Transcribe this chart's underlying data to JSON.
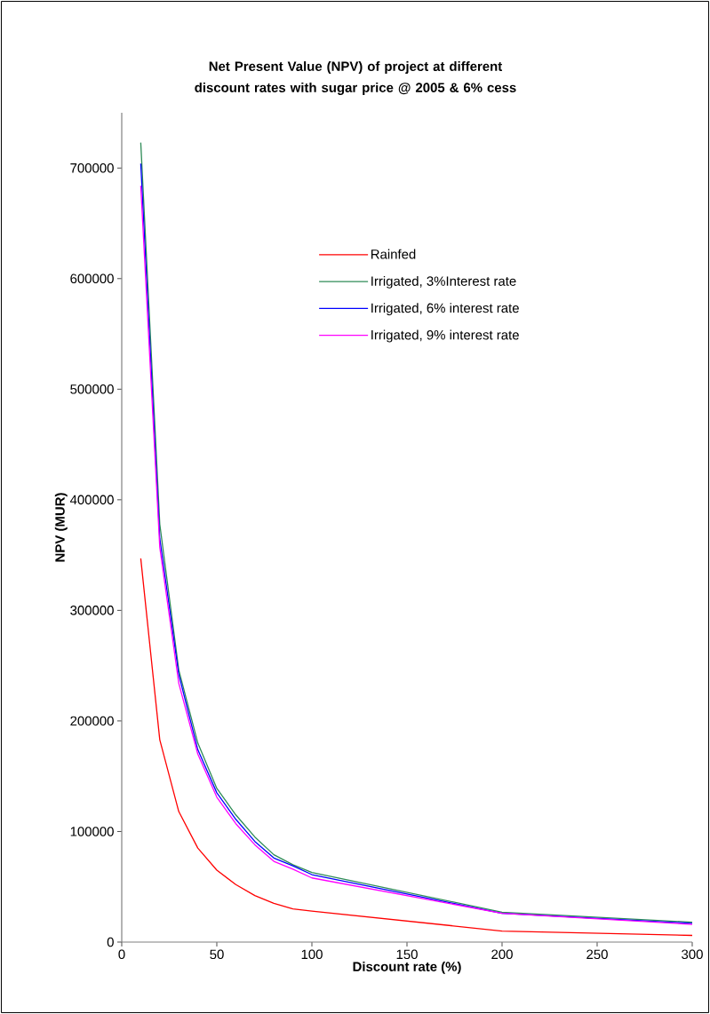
{
  "chart_data": {
    "type": "line",
    "title": "Net Present Value (NPV) of project at different discount rates with sugar price @ 2005 & 6% cess",
    "xlabel": "Discount rate (%)",
    "ylabel": "NPV (MUR)",
    "x": [
      10,
      20,
      30,
      40,
      50,
      60,
      70,
      80,
      90,
      100,
      200,
      300
    ],
    "series": [
      {
        "name": "Rainfed",
        "color": "#ff0000",
        "values": [
          347000,
          183000,
          118000,
          85000,
          65000,
          52000,
          42000,
          35000,
          30000,
          28000,
          10000,
          6000
        ]
      },
      {
        "name": "Irrigated, 3%Interest rate",
        "color": "#2e8b57",
        "values": [
          723000,
          378000,
          246000,
          180000,
          139000,
          115000,
          95000,
          79000,
          70000,
          63000,
          27000,
          18000
        ]
      },
      {
        "name": "Irrigated, 6% interest rate",
        "color": "#0000ff",
        "values": [
          704000,
          365000,
          242000,
          174000,
          135000,
          111000,
          91000,
          76000,
          69000,
          61000,
          26000,
          17000
        ]
      },
      {
        "name": "Irrigated, 9% interest rate",
        "color": "#ff00ff",
        "values": [
          684000,
          357000,
          234000,
          170000,
          131000,
          107000,
          88000,
          73000,
          66000,
          58000,
          26000,
          16000
        ]
      }
    ],
    "xlim": [
      0,
      300
    ],
    "xticks": [
      0,
      50,
      100,
      150,
      200,
      250,
      300
    ],
    "ylim": [
      0,
      750000
    ],
    "yticks": [
      0,
      100000,
      200000,
      300000,
      400000,
      500000,
      600000,
      700000
    ],
    "legend": "top right",
    "line_style": "solid"
  }
}
